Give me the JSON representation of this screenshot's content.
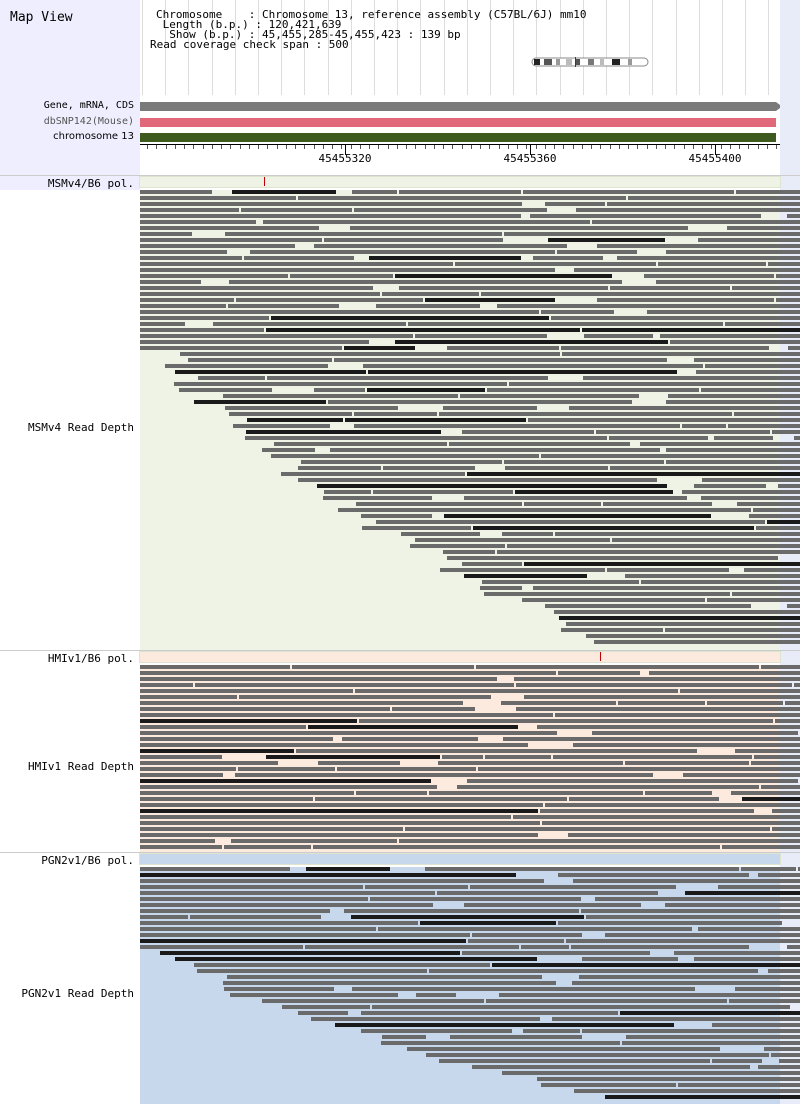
{
  "app": {
    "title": "Map View"
  },
  "info": {
    "chromosome_label": "Chromosome    : Chromosome 13, reference assembly (C57BL/6J) mm10",
    "length_label": " Length (b.p.) : 120,421,639",
    "show_label": "  Show (b.p.) : 45,455,285-45,455,423 : 139 bp",
    "coverage_label": "Read coverage check span : 500"
  },
  "tracks": {
    "gene": {
      "label": "Gene, mRNA, CDS",
      "color": "#7a7a7a"
    },
    "snp": {
      "label": "dbSNP142(Mouse)",
      "color": "#e06878"
    },
    "chrom": {
      "label": "chromosome 13",
      "color": "#3f5a1f"
    }
  },
  "ruler": {
    "ticks": [
      "45455320",
      "45455360",
      "45455400"
    ]
  },
  "panels": [
    {
      "pol_label": "MSMv4/B6 pol.",
      "depth_label": "MSMv4 Read Depth",
      "bg": "#eef3e6"
    },
    {
      "pol_label": "HMIv1/B6 pol.",
      "depth_label": "HMIv1 Read Depth",
      "bg": "#fbeadd"
    },
    {
      "pol_label": "PGN2v1/B6 pol.",
      "depth_label": "PGN2v1 Read Depth",
      "bg": "#c8d8ec"
    }
  ],
  "colors": {
    "read": "#6a6a6a",
    "read_dark": "#1a1a1a",
    "pol_mark": "#c00000"
  }
}
